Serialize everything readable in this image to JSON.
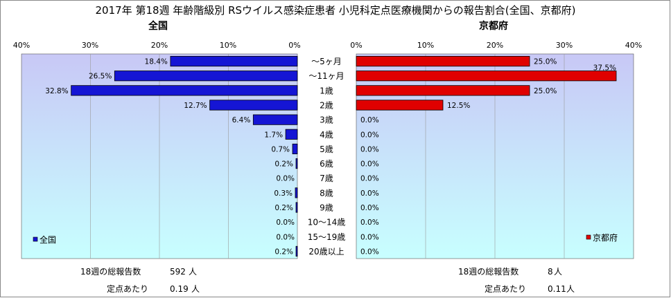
{
  "title": "2017年 第18週 年齢階級別 RSウイルス感染症患者 小児科定点医療機関からの報告割合(全国、京都府)",
  "colors": {
    "left_bar": "#1515d4",
    "right_bar": "#e00000",
    "plot_top": "#c8c8f6",
    "plot_bottom": "#c8ffff"
  },
  "chart_data": {
    "type": "bar",
    "categories": [
      "～5ヶ月",
      "～11ヶ月",
      "1歳",
      "2歳",
      "3歳",
      "4歳",
      "5歳",
      "6歳",
      "7歳",
      "8歳",
      "9歳",
      "10～14歳",
      "15～19歳",
      "20歳以上"
    ],
    "panels": [
      {
        "title": "全国",
        "legend": "全国",
        "orientation": "reversed",
        "xlim": [
          0,
          40
        ],
        "ticks": [
          "40%",
          "30%",
          "20%",
          "10%",
          "0%"
        ],
        "values": [
          18.4,
          26.5,
          32.8,
          12.7,
          6.4,
          1.7,
          0.7,
          0.2,
          0.0,
          0.3,
          0.2,
          0.0,
          0.0,
          0.2
        ],
        "labels": [
          "18.4%",
          "26.5%",
          "32.8%",
          "12.7%",
          "6.4%",
          "1.7%",
          "0.7%",
          "0.2%",
          "0.0%",
          "0.3%",
          "0.2%",
          "0.0%",
          "0.0%",
          "0.2%"
        ],
        "stats": {
          "total_label": "18週の総報告数",
          "total_value": "592",
          "total_unit": "人",
          "per_label": "定点あたり",
          "per_value": "0.19",
          "per_unit": "人"
        }
      },
      {
        "title": "京都府",
        "legend": "京都府",
        "orientation": "normal",
        "xlim": [
          0,
          40
        ],
        "ticks": [
          "0%",
          "10%",
          "20%",
          "30%",
          "40%"
        ],
        "values": [
          25.0,
          37.5,
          25.0,
          12.5,
          0.0,
          0.0,
          0.0,
          0.0,
          0.0,
          0.0,
          0.0,
          0.0,
          0.0,
          0.0
        ],
        "labels": [
          "25.0%",
          "37.5%",
          "25.0%",
          "12.5%",
          "0.0%",
          "0.0%",
          "0.0%",
          "0.0%",
          "0.0%",
          "0.0%",
          "0.0%",
          "0.0%",
          "0.0%",
          "0.0%"
        ],
        "stats": {
          "total_label": "18週の総報告数",
          "total_value": "8",
          "total_unit": "人",
          "per_label": "定点あたり",
          "per_value": "0.11",
          "per_unit": "人"
        }
      }
    ]
  }
}
